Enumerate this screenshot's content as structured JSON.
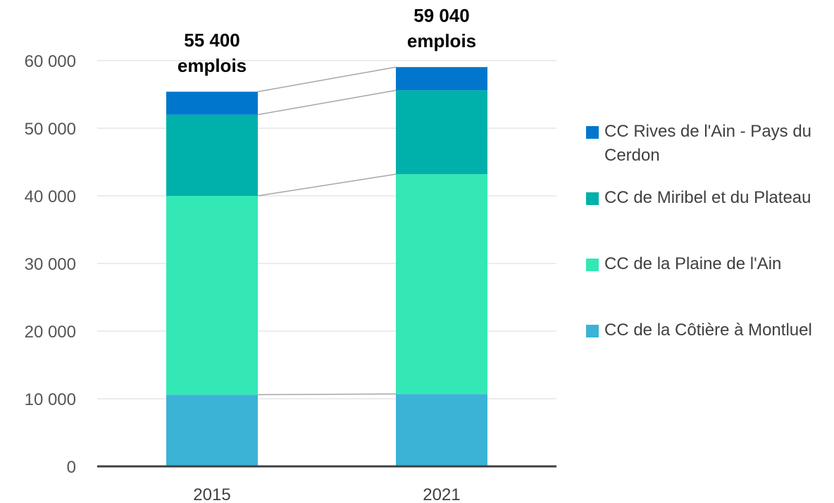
{
  "chart_data": {
    "type": "stacked_bar",
    "categories": [
      "2015",
      "2021"
    ],
    "series": [
      {
        "name": "CC de la Côtière à Montluel",
        "color": "#3bb3d6",
        "values": [
          10600,
          10700
        ]
      },
      {
        "name": "CC de la Plaine de l'Ain",
        "color": "#33e8b4",
        "values": [
          29400,
          32500
        ]
      },
      {
        "name": "CC de Miribel et du Plateau",
        "color": "#00b0aa",
        "values": [
          12000,
          12400
        ]
      },
      {
        "name": "CC Rives de l'Ain - Pays du Cerdon",
        "color": "#0077cc",
        "values": [
          3400,
          3440
        ]
      }
    ],
    "total_labels": [
      [
        "55 400",
        "emplois"
      ],
      [
        "59 040",
        "emplois"
      ]
    ],
    "ylim": [
      0,
      60000
    ],
    "yticks": [
      0,
      {
        "value": 10000,
        "label": "10 000"
      },
      {
        "value": 20000,
        "label": "20 000"
      },
      {
        "value": 30000,
        "label": "30 000"
      },
      {
        "value": 40000,
        "label": "40 000"
      },
      {
        "value": 50000,
        "label": "50 000"
      },
      {
        "value": 60000,
        "label": "60 000"
      }
    ],
    "grid": true
  }
}
